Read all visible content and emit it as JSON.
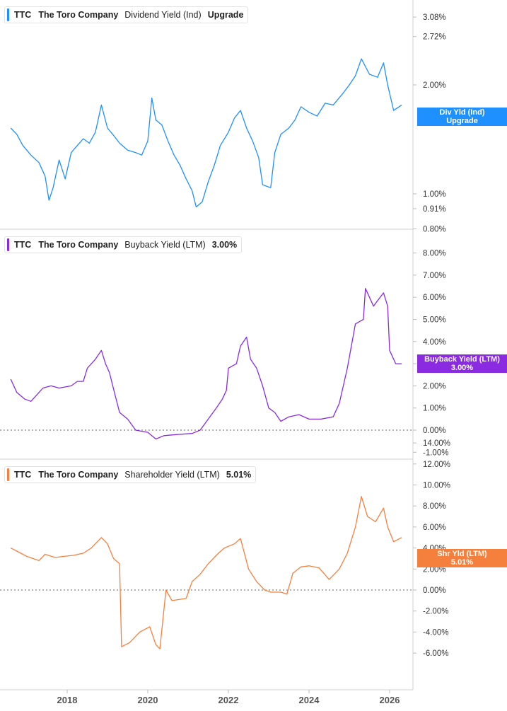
{
  "legends": [
    {
      "ticker": "TTC",
      "company": "The Toro Company",
      "metric": "Dividend Yield (Ind)",
      "value": "Upgrade"
    },
    {
      "ticker": "TTC",
      "company": "The Toro Company",
      "metric": "Buyback Yield (LTM)",
      "value": "3.00%"
    },
    {
      "ticker": "TTC",
      "company": "The Toro Company",
      "metric": "Shareholder Yield (LTM)",
      "value": "5.01%"
    }
  ],
  "badges": [
    {
      "line1": "Div Yld (Ind)",
      "line2": "Upgrade",
      "color": "#1e90ff"
    },
    {
      "line1": "Buyback Yield (LTM)",
      "line2": "3.00%",
      "color": "#8a2be2"
    },
    {
      "line1": "Shr Yld (LTM)",
      "line2": "5.01%",
      "color": "#f5803e"
    }
  ],
  "chart_data": [
    {
      "type": "line",
      "scale": "log",
      "series": [
        {
          "name": "Dividend Yield (Ind)",
          "color": "#1e90ff",
          "values": [
            [
              2016.6,
              1.52
            ],
            [
              2016.75,
              1.46
            ],
            [
              2016.9,
              1.36
            ],
            [
              2017.1,
              1.28
            ],
            [
              2017.3,
              1.22
            ],
            [
              2017.45,
              1.12
            ],
            [
              2017.55,
              0.96
            ],
            [
              2017.65,
              1.04
            ],
            [
              2017.8,
              1.24
            ],
            [
              2017.95,
              1.1
            ],
            [
              2018.1,
              1.3
            ],
            [
              2018.25,
              1.36
            ],
            [
              2018.4,
              1.42
            ],
            [
              2018.55,
              1.38
            ],
            [
              2018.7,
              1.48
            ],
            [
              2018.85,
              1.76
            ],
            [
              2019.0,
              1.52
            ],
            [
              2019.15,
              1.45
            ],
            [
              2019.3,
              1.38
            ],
            [
              2019.5,
              1.32
            ],
            [
              2019.7,
              1.3
            ],
            [
              2019.85,
              1.28
            ],
            [
              2020.0,
              1.4
            ],
            [
              2020.1,
              1.84
            ],
            [
              2020.2,
              1.6
            ],
            [
              2020.35,
              1.55
            ],
            [
              2020.5,
              1.4
            ],
            [
              2020.65,
              1.28
            ],
            [
              2020.8,
              1.2
            ],
            [
              2020.95,
              1.1
            ],
            [
              2021.1,
              1.02
            ],
            [
              2021.2,
              0.92
            ],
            [
              2021.35,
              0.95
            ],
            [
              2021.5,
              1.08
            ],
            [
              2021.65,
              1.2
            ],
            [
              2021.8,
              1.36
            ],
            [
              2022.0,
              1.48
            ],
            [
              2022.15,
              1.62
            ],
            [
              2022.3,
              1.7
            ],
            [
              2022.45,
              1.52
            ],
            [
              2022.6,
              1.4
            ],
            [
              2022.75,
              1.26
            ],
            [
              2022.85,
              1.06
            ],
            [
              2023.05,
              1.04
            ],
            [
              2023.15,
              1.3
            ],
            [
              2023.3,
              1.46
            ],
            [
              2023.5,
              1.52
            ],
            [
              2023.65,
              1.6
            ],
            [
              2023.8,
              1.74
            ],
            [
              2024.0,
              1.68
            ],
            [
              2024.2,
              1.64
            ],
            [
              2024.4,
              1.78
            ],
            [
              2024.6,
              1.76
            ],
            [
              2024.85,
              1.9
            ],
            [
              2025.0,
              2.0
            ],
            [
              2025.15,
              2.12
            ],
            [
              2025.3,
              2.36
            ],
            [
              2025.5,
              2.14
            ],
            [
              2025.7,
              2.1
            ],
            [
              2025.85,
              2.3
            ],
            [
              2025.95,
              2.0
            ],
            [
              2026.1,
              1.7
            ],
            [
              2026.3,
              1.76
            ]
          ]
        }
      ],
      "y_ticks": [
        "3.08%",
        "2.72%",
        "2.00%",
        "1.00%",
        "0.91%",
        "0.80%"
      ],
      "x_ticks": [
        "2018",
        "2020",
        "2022",
        "2024",
        "2026"
      ]
    },
    {
      "type": "line",
      "series": [
        {
          "name": "Buyback Yield (LTM)",
          "color": "#8a2be2",
          "values": [
            [
              2016.6,
              2.3
            ],
            [
              2016.75,
              1.7
            ],
            [
              2016.95,
              1.4
            ],
            [
              2017.1,
              1.3
            ],
            [
              2017.3,
              1.7
            ],
            [
              2017.4,
              1.9
            ],
            [
              2017.6,
              2.0
            ],
            [
              2017.8,
              1.9
            ],
            [
              2018.1,
              2.0
            ],
            [
              2018.25,
              2.2
            ],
            [
              2018.4,
              2.2
            ],
            [
              2018.5,
              2.8
            ],
            [
              2018.7,
              3.2
            ],
            [
              2018.85,
              3.6
            ],
            [
              2018.95,
              3.0
            ],
            [
              2019.05,
              2.6
            ],
            [
              2019.2,
              1.5
            ],
            [
              2019.3,
              0.8
            ],
            [
              2019.5,
              0.5
            ],
            [
              2019.7,
              0.0
            ],
            [
              2020.0,
              -0.1
            ],
            [
              2020.2,
              -0.4
            ],
            [
              2020.4,
              -0.25
            ],
            [
              2020.7,
              -0.2
            ],
            [
              2021.1,
              -0.15
            ],
            [
              2021.3,
              0.0
            ],
            [
              2021.5,
              0.5
            ],
            [
              2021.7,
              1.0
            ],
            [
              2021.85,
              1.4
            ],
            [
              2021.95,
              1.8
            ],
            [
              2022.0,
              2.8
            ],
            [
              2022.2,
              3.0
            ],
            [
              2022.3,
              3.8
            ],
            [
              2022.45,
              4.2
            ],
            [
              2022.55,
              3.2
            ],
            [
              2022.7,
              2.8
            ],
            [
              2022.85,
              2.0
            ],
            [
              2023.0,
              1.0
            ],
            [
              2023.15,
              0.8
            ],
            [
              2023.3,
              0.4
            ],
            [
              2023.5,
              0.6
            ],
            [
              2023.75,
              0.7
            ],
            [
              2024.0,
              0.5
            ],
            [
              2024.3,
              0.5
            ],
            [
              2024.6,
              0.6
            ],
            [
              2024.75,
              1.2
            ],
            [
              2024.95,
              2.8
            ],
            [
              2025.15,
              4.8
            ],
            [
              2025.35,
              5.0
            ],
            [
              2025.4,
              6.4
            ],
            [
              2025.6,
              5.6
            ],
            [
              2025.85,
              6.2
            ],
            [
              2025.95,
              5.6
            ],
            [
              2026.0,
              3.6
            ],
            [
              2026.15,
              3.0
            ],
            [
              2026.3,
              3.0
            ]
          ]
        }
      ],
      "y_ticks": [
        "8.00%",
        "7.00%",
        "6.00%",
        "5.00%",
        "4.00%",
        "3.00%",
        "2.00%",
        "1.00%",
        "0.00%",
        "-1.00%"
      ],
      "ylim": [
        -1,
        8
      ]
    },
    {
      "type": "line",
      "series": [
        {
          "name": "Shareholder Yield (LTM)",
          "color": "#f5803e",
          "values": [
            [
              2016.6,
              4.0
            ],
            [
              2016.8,
              3.6
            ],
            [
              2017.0,
              3.2
            ],
            [
              2017.3,
              2.8
            ],
            [
              2017.45,
              3.4
            ],
            [
              2017.7,
              3.1
            ],
            [
              2017.9,
              3.2
            ],
            [
              2018.15,
              3.3
            ],
            [
              2018.4,
              3.5
            ],
            [
              2018.6,
              4.0
            ],
            [
              2018.85,
              5.0
            ],
            [
              2019.0,
              4.4
            ],
            [
              2019.15,
              3.0
            ],
            [
              2019.3,
              2.5
            ],
            [
              2019.35,
              -5.4
            ],
            [
              2019.55,
              -5.0
            ],
            [
              2019.8,
              -4.0
            ],
            [
              2020.05,
              -3.5
            ],
            [
              2020.2,
              -5.2
            ],
            [
              2020.3,
              -5.6
            ],
            [
              2020.45,
              0.0
            ],
            [
              2020.6,
              -1.0
            ],
            [
              2020.95,
              -0.8
            ],
            [
              2021.1,
              0.8
            ],
            [
              2021.3,
              1.5
            ],
            [
              2021.5,
              2.5
            ],
            [
              2021.75,
              3.5
            ],
            [
              2021.9,
              4.0
            ],
            [
              2022.15,
              4.4
            ],
            [
              2022.3,
              4.9
            ],
            [
              2022.5,
              2.0
            ],
            [
              2022.7,
              0.8
            ],
            [
              2022.9,
              0.0
            ],
            [
              2023.05,
              -0.2
            ],
            [
              2023.3,
              -0.2
            ],
            [
              2023.45,
              -0.4
            ],
            [
              2023.6,
              1.6
            ],
            [
              2023.8,
              2.2
            ],
            [
              2024.0,
              2.3
            ],
            [
              2024.25,
              2.1
            ],
            [
              2024.5,
              1.0
            ],
            [
              2024.75,
              2.0
            ],
            [
              2024.95,
              3.5
            ],
            [
              2025.15,
              6.0
            ],
            [
              2025.3,
              8.9
            ],
            [
              2025.45,
              7.0
            ],
            [
              2025.65,
              6.5
            ],
            [
              2025.85,
              7.8
            ],
            [
              2025.95,
              6.0
            ],
            [
              2026.1,
              4.6
            ],
            [
              2026.3,
              5.0
            ]
          ]
        }
      ],
      "y_ticks": [
        "14.00%",
        "12.00%",
        "10.00%",
        "8.00%",
        "6.00%",
        "4.00%",
        "2.00%",
        "0.00%",
        "-2.00%",
        "-4.00%",
        "-6.00%"
      ],
      "ylim": [
        -6,
        14
      ]
    }
  ]
}
